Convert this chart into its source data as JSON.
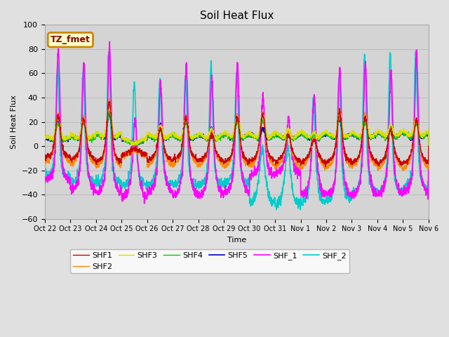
{
  "title": "Soil Heat Flux",
  "xlabel": "Time",
  "ylabel": "Soil Heat Flux",
  "ylim": [
    -60,
    100
  ],
  "figsize": [
    6.4,
    4.8
  ],
  "dpi": 100,
  "fig_facecolor": "#e0e0e0",
  "plot_facecolor": "#d4d4d4",
  "series": {
    "SHF1": {
      "color": "#cc0000",
      "lw": 1.0,
      "zorder": 4
    },
    "SHF2": {
      "color": "#ff8800",
      "lw": 1.0,
      "zorder": 4
    },
    "SHF3": {
      "color": "#dddd00",
      "lw": 1.0,
      "zorder": 4
    },
    "SHF4": {
      "color": "#00cc00",
      "lw": 1.0,
      "zorder": 4
    },
    "SHF5": {
      "color": "#0000cc",
      "lw": 1.2,
      "zorder": 4
    },
    "SHF_1": {
      "color": "#ff00ff",
      "lw": 1.2,
      "zorder": 3
    },
    "SHF_2": {
      "color": "#00cccc",
      "lw": 1.2,
      "zorder": 2
    }
  },
  "xtick_labels": [
    "Oct 22",
    "Oct 23",
    "Oct 24",
    "Oct 25",
    "Oct 26",
    "Oct 27",
    "Oct 28",
    "Oct 29",
    "Oct 30",
    "Oct 31",
    "Nov 1",
    "Nov 2",
    "Nov 3",
    "Nov 4",
    "Nov 5",
    "Nov 6"
  ],
  "ytick_values": [
    -60,
    -40,
    -20,
    0,
    20,
    40,
    60,
    80,
    100
  ],
  "grid_color": "#bbbbbb",
  "annotation_text": "TZ_fmet",
  "annotation_bg": "#ffffcc",
  "annotation_border": "#cc8800",
  "day_peak_amps_shf5": [
    20,
    18,
    24,
    0,
    14,
    22,
    12,
    20,
    12,
    10,
    8,
    20,
    18,
    12,
    18
  ],
  "day_peak_amps_shf1": [
    28,
    26,
    40,
    0,
    18,
    27,
    14,
    28,
    30,
    13,
    10,
    32,
    28,
    18,
    26
  ],
  "day_peak_amps_shf_1": [
    88,
    78,
    94,
    34,
    63,
    78,
    68,
    79,
    48,
    30,
    53,
    75,
    80,
    75,
    88
  ],
  "day_peak_amps_shf_2": [
    73,
    70,
    85,
    62,
    65,
    66,
    77,
    71,
    13,
    14,
    54,
    69,
    87,
    87,
    87
  ],
  "day_night_shf1": [
    -10,
    -12,
    -14,
    -8,
    -13,
    -12,
    -13,
    -14,
    -13,
    -14,
    -15,
    -14,
    -14,
    -16,
    -15
  ],
  "day_night_shf2": [
    -14,
    -16,
    -18,
    -10,
    -17,
    -16,
    -17,
    -18,
    -17,
    -18,
    -19,
    -18,
    -18,
    -20,
    -19
  ],
  "day_night_shf_1": [
    -28,
    -36,
    -38,
    -42,
    -38,
    -40,
    -40,
    -38,
    -24,
    -22,
    -40,
    -40,
    -40,
    -40,
    -38
  ],
  "day_night_shf_2": [
    -25,
    -30,
    -30,
    -32,
    -32,
    -32,
    -32,
    -30,
    -46,
    -48,
    -46,
    -44,
    -38,
    -38,
    -34
  ]
}
